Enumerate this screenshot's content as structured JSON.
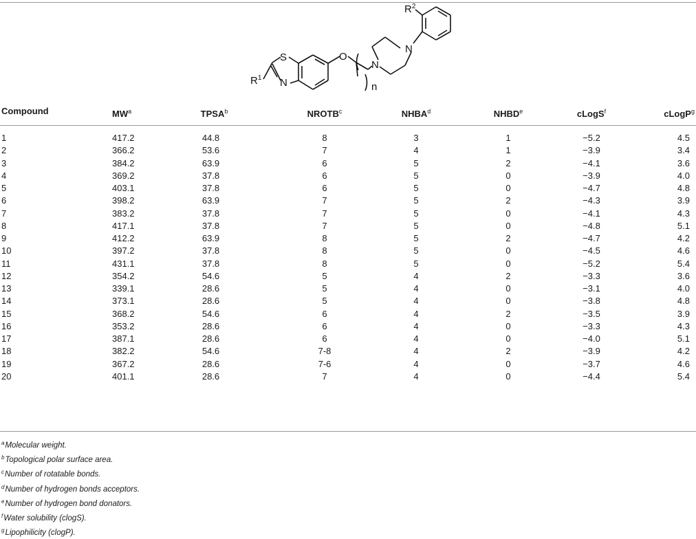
{
  "structure": {
    "labels": {
      "r1": "R",
      "r1_sup": "1",
      "r2": "R",
      "r2_sup": "2",
      "s": "S",
      "n_ring": "N",
      "o": "O",
      "n_pip1": "N",
      "n_pip2": "N",
      "n_sub": "n"
    }
  },
  "table": {
    "headers": [
      {
        "text": "Compound",
        "sup": ""
      },
      {
        "text": "MW",
        "sup": "a"
      },
      {
        "text": "TPSA",
        "sup": "b"
      },
      {
        "text": "NROTB",
        "sup": "c"
      },
      {
        "text": "NHBA",
        "sup": "d"
      },
      {
        "text": "NHBD",
        "sup": "e"
      },
      {
        "text": "cLogS",
        "sup": "f"
      },
      {
        "text": "cLogP",
        "sup": "g"
      }
    ],
    "rows": [
      [
        "1",
        "417.2",
        "44.8",
        "8",
        "3",
        "1",
        "−5.2",
        "4.5"
      ],
      [
        "2",
        "366.2",
        "53.6",
        "7",
        "4",
        "1",
        "−3.9",
        "3.4"
      ],
      [
        "3",
        "384.2",
        "63.9",
        "6",
        "5",
        "2",
        "−4.1",
        "3.6"
      ],
      [
        "4",
        "369.2",
        "37.8",
        "6",
        "5",
        "0",
        "−3.9",
        "4.0"
      ],
      [
        "5",
        "403.1",
        "37.8",
        "6",
        "5",
        "0",
        "−4.7",
        "4.8"
      ],
      [
        "6",
        "398.2",
        "63.9",
        "7",
        "5",
        "2",
        "−4.3",
        "3.9"
      ],
      [
        "7",
        "383.2",
        "37.8",
        "7",
        "5",
        "0",
        "−4.1",
        "4.3"
      ],
      [
        "8",
        "417.1",
        "37.8",
        "7",
        "5",
        "0",
        "−4.8",
        "5.1"
      ],
      [
        "9",
        "412.2",
        "63.9",
        "8",
        "5",
        "2",
        "−4.7",
        "4.2"
      ],
      [
        "10",
        "397.2",
        "37.8",
        "8",
        "5",
        "0",
        "−4.5",
        "4.6"
      ],
      [
        "11",
        "431.1",
        "37.8",
        "8",
        "5",
        "0",
        "−5.2",
        "5.4"
      ],
      [
        "12",
        "354.2",
        "54.6",
        "5",
        "4",
        "2",
        "−3.3",
        "3.6"
      ],
      [
        "13",
        "339.1",
        "28.6",
        "5",
        "4",
        "0",
        "−3.1",
        "4.0"
      ],
      [
        "14",
        "373.1",
        "28.6",
        "5",
        "4",
        "0",
        "−3.8",
        "4.8"
      ],
      [
        "15",
        "368.2",
        "54.6",
        "6",
        "4",
        "2",
        "−3.5",
        "3.9"
      ],
      [
        "16",
        "353.2",
        "28.6",
        "6",
        "4",
        "0",
        "−3.3",
        "4.3"
      ],
      [
        "17",
        "387.1",
        "28.6",
        "6",
        "4",
        "0",
        "−4.0",
        "5.1"
      ],
      [
        "18",
        "382.2",
        "54.6",
        "7-8",
        "4",
        "2",
        "−3.9",
        "4.2"
      ],
      [
        "19",
        "367.2",
        "28.6",
        "7-6",
        "4",
        "0",
        "−3.7",
        "4.6"
      ],
      [
        "20",
        "401.1",
        "28.6",
        "7",
        "4",
        "0",
        "−4.4",
        "5.4"
      ]
    ]
  },
  "footnotes": [
    {
      "sup": "a",
      "text": "Molecular weight."
    },
    {
      "sup": "b",
      "text": "Topological polar surface area."
    },
    {
      "sup": "c",
      "text": "Number of rotatable bonds."
    },
    {
      "sup": "d",
      "text": "Number of hydrogen bonds acceptors."
    },
    {
      "sup": "e",
      "text": "Number of hydrogen bond donators."
    },
    {
      "sup": "f",
      "text": "Water solubility (clogS)."
    },
    {
      "sup": "g",
      "text": "Lipophilicity (clogP)."
    }
  ]
}
